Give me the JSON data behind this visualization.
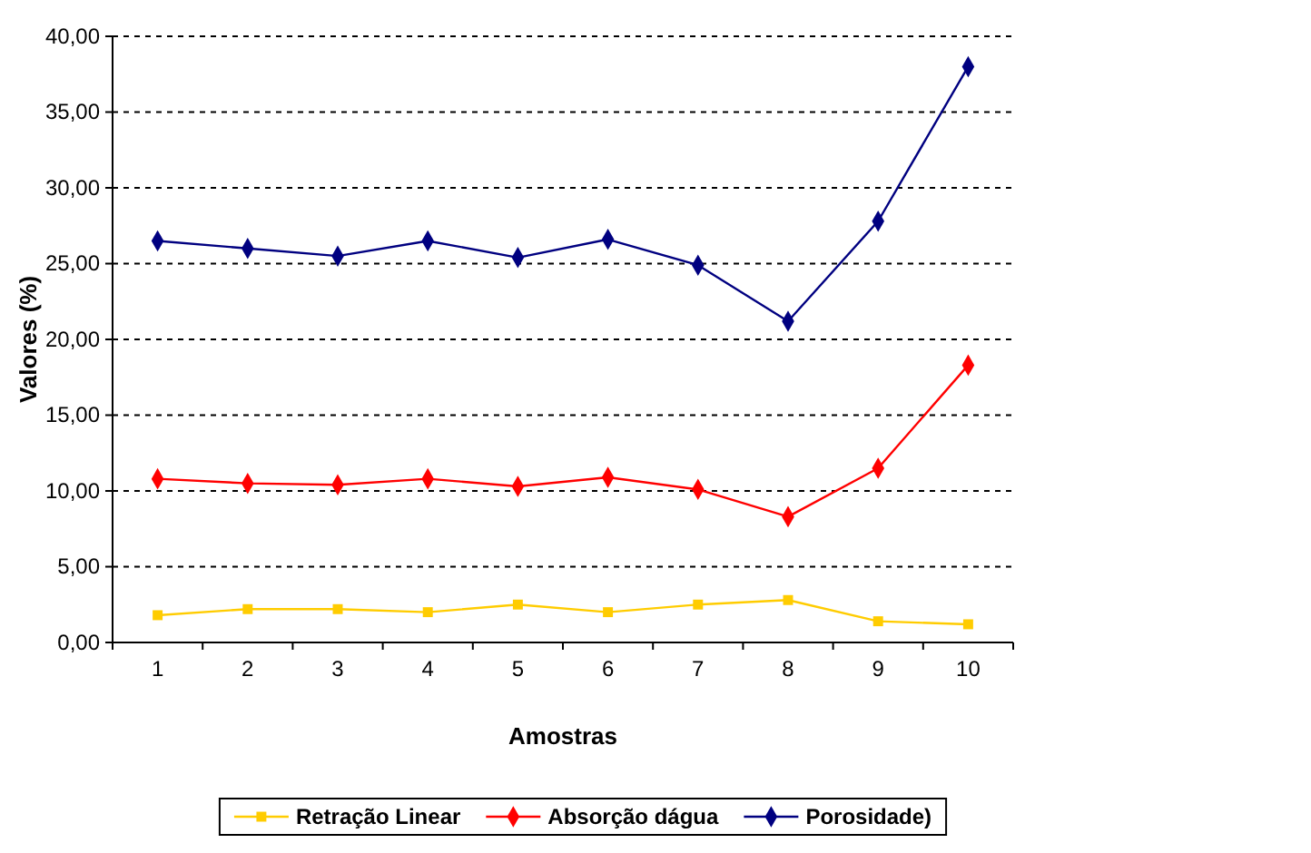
{
  "chart_data": {
    "type": "line",
    "xlabel": "Amostras",
    "ylabel": "Valores (%)",
    "categories": [
      "1",
      "2",
      "3",
      "4",
      "5",
      "6",
      "7",
      "8",
      "9",
      "10"
    ],
    "series": [
      {
        "name": "Retração Linear",
        "color": "#ffcc00",
        "marker": "square",
        "values": [
          1.8,
          2.2,
          2.2,
          2.0,
          2.5,
          2.0,
          2.5,
          2.8,
          1.4,
          1.2
        ]
      },
      {
        "name": "Absorção dágua",
        "color": "#ff0000",
        "marker": "diamond",
        "values": [
          10.8,
          10.5,
          10.4,
          10.8,
          10.3,
          10.9,
          10.1,
          8.3,
          11.5,
          18.3
        ]
      },
      {
        "name": "Porosidade)",
        "color": "#000080",
        "marker": "diamond",
        "values": [
          26.5,
          26.0,
          25.5,
          26.5,
          25.4,
          26.6,
          24.9,
          21.2,
          27.8,
          38.0
        ]
      }
    ],
    "ylim": [
      0,
      40
    ],
    "yticks": [
      {
        "value": 0,
        "label": "0,00"
      },
      {
        "value": 5,
        "label": "5,00"
      },
      {
        "value": 10,
        "label": "10,00"
      },
      {
        "value": 15,
        "label": "15,00"
      },
      {
        "value": 20,
        "label": "20,00"
      },
      {
        "value": 25,
        "label": "25,00"
      },
      {
        "value": 30,
        "label": "30,00"
      },
      {
        "value": 35,
        "label": "35,00"
      },
      {
        "value": 40,
        "label": "40,00"
      }
    ],
    "grid": "y",
    "legend": "bottom",
    "line_style": "solid"
  }
}
